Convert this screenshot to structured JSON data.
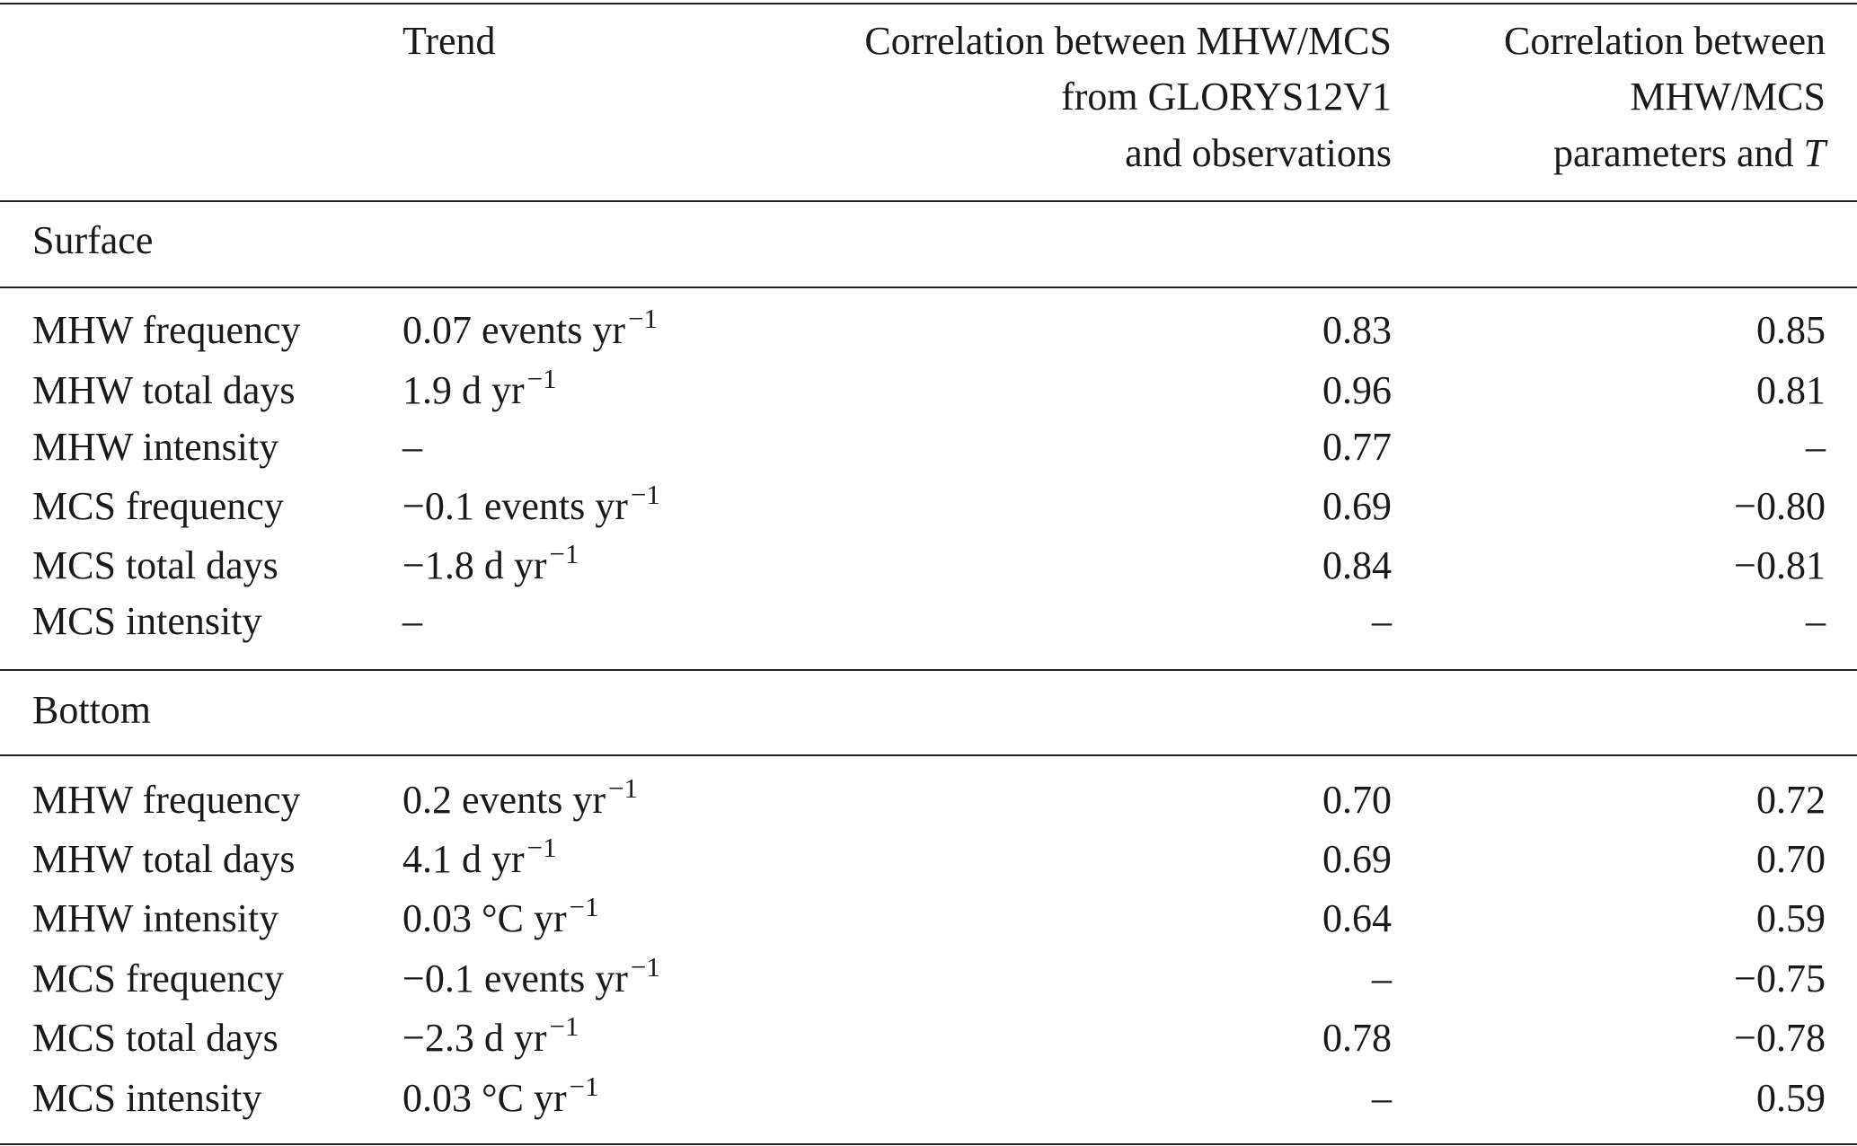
{
  "table": {
    "header": [
      {
        "lines": []
      },
      {
        "lines": [
          "Trend"
        ]
      },
      {
        "lines": [
          "Correlation between MHW/MCS",
          "from GLORYS12V1",
          "and observations"
        ]
      },
      {
        "lines": [
          "Correlation between",
          "MHW/MCS",
          {
            "text": "parameters and ",
            "italic": "T"
          }
        ]
      }
    ],
    "sections": [
      {
        "title": "Surface",
        "rows": [
          [
            "MHW frequency",
            {
              "text": "0.07 events yr",
              "sup": "−1"
            },
            "0.83",
            "0.85"
          ],
          [
            "MHW total days",
            {
              "text": "1.9 d yr",
              "sup": "−1"
            },
            "0.96",
            "0.81"
          ],
          [
            "MHW intensity",
            "–",
            "0.77",
            "–"
          ],
          [
            "MCS frequency",
            {
              "text": "−0.1 events yr",
              "sup": "−1"
            },
            "0.69",
            "−0.80"
          ],
          [
            "MCS total days",
            {
              "text": "−1.8 d yr",
              "sup": "−1"
            },
            "0.84",
            "−0.81"
          ],
          [
            "MCS intensity",
            "–",
            "–",
            "–"
          ]
        ]
      },
      {
        "title": "Bottom",
        "rows": [
          [
            "MHW frequency",
            {
              "text": "0.2 events yr",
              "sup": "−1"
            },
            "0.70",
            "0.72"
          ],
          [
            "MHW total days",
            {
              "text": "4.1 d yr",
              "sup": "−1"
            },
            "0.69",
            "0.70"
          ],
          [
            "MHW intensity",
            {
              "text": "0.03 °C yr",
              "sup": "−1"
            },
            "0.64",
            "0.59"
          ],
          [
            "MCS frequency",
            {
              "text": "−0.1 events yr",
              "sup": "−1"
            },
            "–",
            "−0.75"
          ],
          [
            "MCS total days",
            {
              "text": "−2.3 d yr",
              "sup": "−1"
            },
            "0.78",
            "−0.78"
          ],
          [
            "MCS intensity",
            {
              "text": "0.03 °C yr",
              "sup": "−1"
            },
            "–",
            "0.59"
          ]
        ]
      }
    ]
  }
}
